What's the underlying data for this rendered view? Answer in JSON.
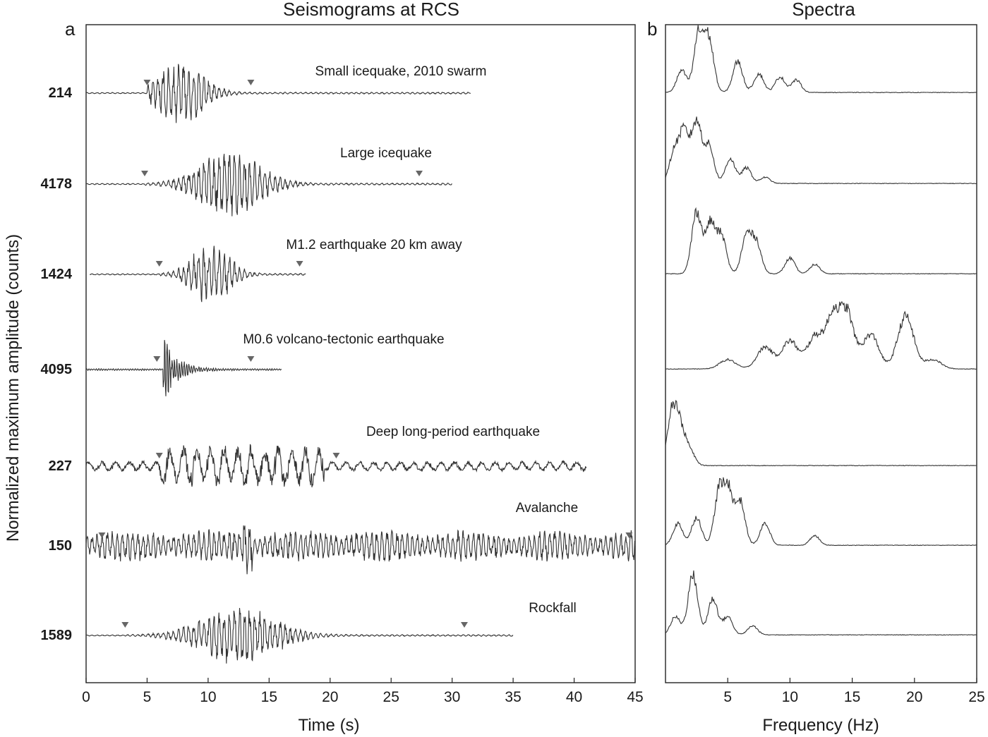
{
  "panels": {
    "a": {
      "letter": "a",
      "title": "Seismograms at RCS",
      "xlabel": "Time (s)"
    },
    "b": {
      "letter": "b",
      "title": "Spectra",
      "xlabel": "Frequency (Hz)"
    }
  },
  "ylabel": "Normalized maximum amplitude (counts)",
  "chart_data": [
    {
      "type": "line",
      "title": "Seismograms at RCS",
      "xlabel": "Time (s)",
      "ylabel": "Normalized maximum amplitude (counts)",
      "xlim": [
        0,
        45
      ],
      "xticks": [
        0,
        5,
        10,
        15,
        20,
        25,
        30,
        35,
        40,
        45
      ],
      "grid": false,
      "series": [
        {
          "name": "Small icequake, 2010 swarm",
          "amplitude": 214,
          "t_end": 31.5,
          "picks": [
            5,
            13.5
          ],
          "burst": [
            7.7,
            10
          ]
        },
        {
          "name": "Large icequake",
          "amplitude": 4178,
          "t_end": 30,
          "picks": [
            4.8,
            27.3
          ],
          "burst": [
            11.8,
            13
          ]
        },
        {
          "name": "M1.2 earthquake 20 km away",
          "amplitude": 1424,
          "t_end": 18,
          "picks": [
            6,
            17.5
          ],
          "burst": [
            10.2,
            8
          ]
        },
        {
          "name": "M0.6 volcano-tectonic earthquake",
          "amplitude": 4095,
          "t_end": 16,
          "picks": [
            5.8,
            13.5
          ],
          "burst": [
            6.8,
            2
          ]
        },
        {
          "name": "Deep long-period earthquake",
          "amplitude": 227,
          "t_end": 41,
          "picks": [
            6,
            20.5
          ],
          "burst": [
            13,
            14
          ]
        },
        {
          "name": "Avalanche",
          "amplitude": 150,
          "t_end": 45,
          "picks": [
            1.3,
            44.5
          ],
          "burst": [
            22,
            40
          ]
        },
        {
          "name": "Rockfall",
          "amplitude": 1589,
          "t_end": 35,
          "picks": [
            3.2,
            31
          ],
          "burst": [
            12.5,
            16
          ]
        }
      ]
    },
    {
      "type": "line",
      "title": "Spectra",
      "xlabel": "Frequency (Hz)",
      "xlim": [
        0,
        25
      ],
      "xticks": [
        5,
        10,
        15,
        20,
        25
      ],
      "grid": false,
      "series": [
        {
          "name": "Small icequake, 2010 swarm",
          "peak_hz": 2.7,
          "peaks": [
            [
              1.3,
              0.35
            ],
            [
              2.7,
              1.0
            ],
            [
              3.5,
              0.8
            ],
            [
              5.8,
              0.5
            ],
            [
              7.5,
              0.3
            ],
            [
              9.2,
              0.25
            ],
            [
              10.5,
              0.2
            ]
          ]
        },
        {
          "name": "Large icequake",
          "peak_hz": 2.5,
          "peaks": [
            [
              0.7,
              0.5
            ],
            [
              1.5,
              0.8
            ],
            [
              2.5,
              1.0
            ],
            [
              3.5,
              0.6
            ],
            [
              5.2,
              0.4
            ],
            [
              6.5,
              0.25
            ],
            [
              8,
              0.1
            ]
          ]
        },
        {
          "name": "M1.2 earthquake 20 km away",
          "peak_hz": 2.5,
          "peaks": [
            [
              2.5,
              1.0
            ],
            [
              3.6,
              0.8
            ],
            [
              4.5,
              0.6
            ],
            [
              6.5,
              0.6
            ],
            [
              7.3,
              0.5
            ],
            [
              10,
              0.25
            ],
            [
              12,
              0.15
            ]
          ]
        },
        {
          "name": "M0.6 volcano-tectonic earthquake",
          "peak_hz": 19.3,
          "peaks": [
            [
              5,
              0.15
            ],
            [
              8,
              0.35
            ],
            [
              10,
              0.45
            ],
            [
              12,
              0.5
            ],
            [
              13.5,
              0.75
            ],
            [
              14.5,
              0.85
            ],
            [
              16.5,
              0.55
            ],
            [
              19.3,
              0.85
            ],
            [
              21.5,
              0.15
            ]
          ]
        },
        {
          "name": "Deep long-period earthquake",
          "peak_hz": 0.6,
          "peaks": [
            [
              0.6,
              1.0
            ],
            [
              1.3,
              0.45
            ],
            [
              2,
              0.2
            ]
          ]
        },
        {
          "name": "Avalanche",
          "peak_hz": 4.8,
          "peaks": [
            [
              1,
              0.35
            ],
            [
              2.5,
              0.45
            ],
            [
              4.3,
              0.8
            ],
            [
              5,
              0.9
            ],
            [
              6,
              0.7
            ],
            [
              8,
              0.35
            ],
            [
              12,
              0.15
            ]
          ]
        },
        {
          "name": "Rockfall",
          "peak_hz": 2.2,
          "peaks": [
            [
              0.8,
              0.3
            ],
            [
              2.2,
              1.0
            ],
            [
              3.8,
              0.6
            ],
            [
              5,
              0.3
            ],
            [
              7,
              0.15
            ]
          ]
        }
      ]
    }
  ]
}
